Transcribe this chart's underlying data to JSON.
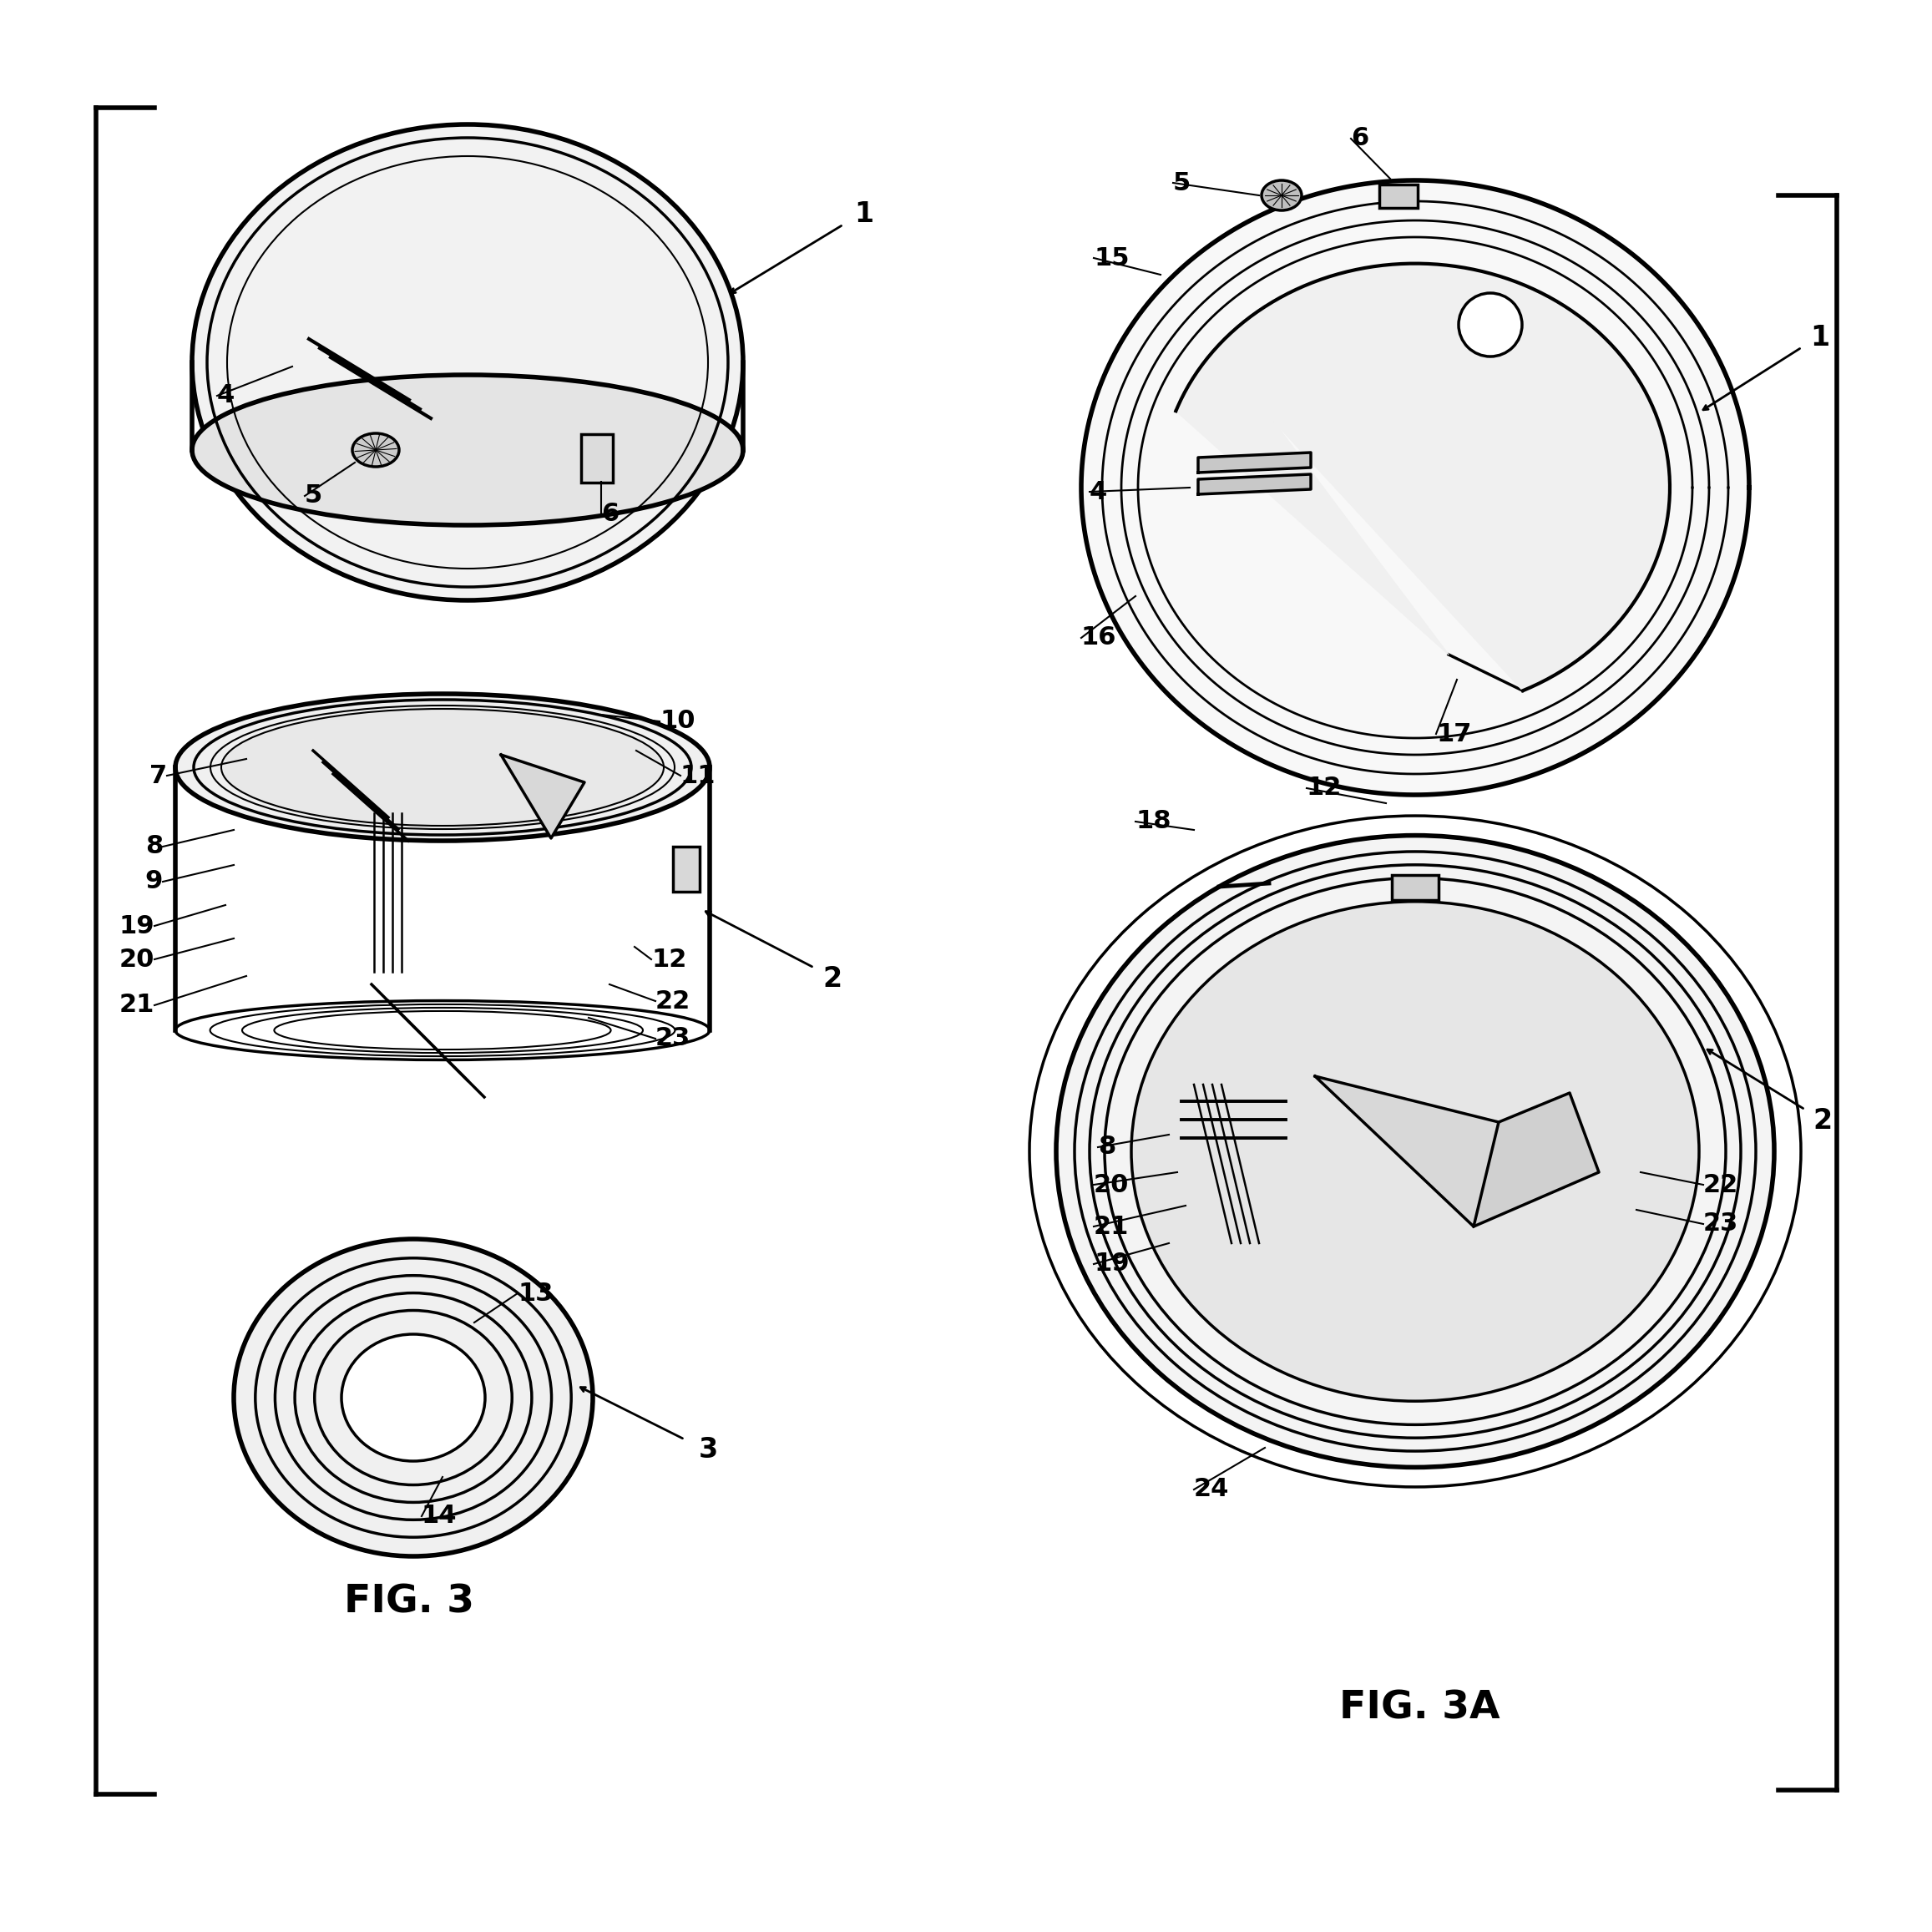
{
  "bg_color": "#ffffff",
  "lc": "#000000",
  "fig3_label": "FIG. 3",
  "fig3a_label": "FIG. 3A",
  "fig_w": 23.14,
  "fig_h": 23.14
}
